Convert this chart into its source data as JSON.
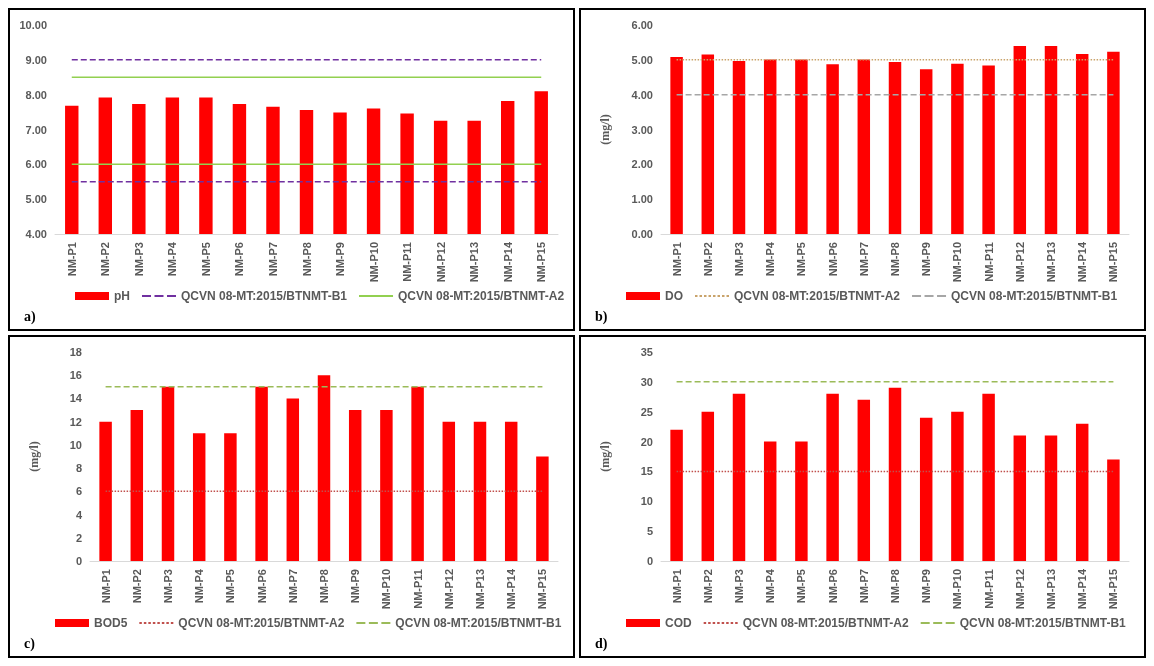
{
  "chart_data": [
    {
      "type": "bar",
      "categories": [
        "NM-P1",
        "NM-P2",
        "NM-P3",
        "NM-P4",
        "NM-P5",
        "NM-P6",
        "NM-P7",
        "NM-P8",
        "NM-P9",
        "NM-P10",
        "NM-P11",
        "NM-P12",
        "NM-P13",
        "NM-P14",
        "NM-P15"
      ],
      "ylim": [
        4,
        10
      ],
      "yticks": [
        {
          "value": 4,
          "label": "4.00"
        },
        {
          "value": 5,
          "label": "5.00"
        },
        {
          "value": 6,
          "label": "6.00"
        },
        {
          "value": 7,
          "label": "7.00"
        },
        {
          "value": 8,
          "label": "8.00"
        },
        {
          "value": 9,
          "label": "9.00"
        },
        {
          "value": 10,
          "label": "10.00"
        }
      ],
      "grid": false,
      "legend": "bottom",
      "annotations": [
        "a)"
      ],
      "series": [
        {
          "name": "pH",
          "color": "#ff0000",
          "values": [
            7.68,
            7.92,
            7.73,
            7.92,
            7.92,
            7.73,
            7.65,
            7.56,
            7.49,
            7.6,
            7.46,
            7.25,
            7.25,
            7.82,
            8.1
          ]
        },
        {
          "type": "line",
          "name": "QCVN 08-MT:2015/BTNMT-B1",
          "color": "#7030a0",
          "line_style": "dashed",
          "values": [
            9,
            9,
            9,
            9,
            9,
            9,
            9,
            9,
            9,
            9,
            9,
            9,
            9,
            9,
            9
          ]
        },
        {
          "type": "line",
          "name": "QCVN 08-MT:2015/BTNMT-A2",
          "color": "#92d050",
          "line_style": "solid",
          "values": [
            8.5,
            8.5,
            8.5,
            8.5,
            8.5,
            8.5,
            8.5,
            8.5,
            8.5,
            8.5,
            8.5,
            8.5,
            8.5,
            8.5,
            8.5
          ]
        },
        {
          "type": "line",
          "color": "#92d050",
          "line_style": "solid",
          "values": [
            6,
            6,
            6,
            6,
            6,
            6,
            6,
            6,
            6,
            6,
            6,
            6,
            6,
            6,
            6
          ]
        },
        {
          "type": "line",
          "color": "#7030a0",
          "line_style": "dashed",
          "values": [
            5.5,
            5.5,
            5.5,
            5.5,
            5.5,
            5.5,
            5.5,
            5.5,
            5.5,
            5.5,
            5.5,
            5.5,
            5.5,
            5.5,
            5.5
          ]
        }
      ]
    },
    {
      "type": "bar",
      "categories": [
        "NM-P1",
        "NM-P2",
        "NM-P3",
        "NM-P4",
        "NM-P5",
        "NM-P6",
        "NM-P7",
        "NM-P8",
        "NM-P9",
        "NM-P10",
        "NM-P11",
        "NM-P12",
        "NM-P13",
        "NM-P14",
        "NM-P15"
      ],
      "ylabel": "(mg/l)",
      "ylim": [
        0,
        6
      ],
      "yticks": [
        {
          "value": 0,
          "label": "0.00"
        },
        {
          "value": 1,
          "label": "1.00"
        },
        {
          "value": 2,
          "label": "2.00"
        },
        {
          "value": 3,
          "label": "3.00"
        },
        {
          "value": 4,
          "label": "4.00"
        },
        {
          "value": 5,
          "label": "5.00"
        },
        {
          "value": 6,
          "label": "6.00"
        }
      ],
      "grid": false,
      "legend": "bottom",
      "annotations": [
        "b)"
      ],
      "series": [
        {
          "name": "DO",
          "color": "#ff0000",
          "values": [
            5.08,
            5.15,
            4.97,
            5.01,
            5.01,
            4.87,
            5.01,
            4.94,
            4.73,
            4.89,
            4.84,
            5.4,
            5.4,
            5.17,
            5.23
          ]
        },
        {
          "type": "line",
          "name": "QCVN 08-MT:2015/BTNMT-A2",
          "color": "#c9a36b",
          "line_style": "dotted",
          "values": [
            5,
            5,
            5,
            5,
            5,
            5,
            5,
            5,
            5,
            5,
            5,
            5,
            5,
            5,
            5
          ]
        },
        {
          "type": "line",
          "name": "QCVN 08-MT:2015/BTNMT-B1",
          "color": "#a6a6a6",
          "line_style": "dashed",
          "values": [
            4,
            4,
            4,
            4,
            4,
            4,
            4,
            4,
            4,
            4,
            4,
            4,
            4,
            4,
            4
          ]
        }
      ]
    },
    {
      "type": "bar",
      "categories": [
        "NM-P1",
        "NM-P2",
        "NM-P3",
        "NM-P4",
        "NM-P5",
        "NM-P6",
        "NM-P7",
        "NM-P8",
        "NM-P9",
        "NM-P10",
        "NM-P11",
        "NM-P12",
        "NM-P13",
        "NM-P14",
        "NM-P15"
      ],
      "ylabel": "(mg/l)",
      "ylim": [
        0,
        18
      ],
      "yticks": [
        0,
        2,
        4,
        6,
        8,
        10,
        12,
        14,
        16,
        18
      ],
      "grid": false,
      "legend": "bottom",
      "annotations": [
        "c)"
      ],
      "series": [
        {
          "name": "BOD5",
          "color": "#ff0000",
          "values": [
            12,
            13,
            15,
            11,
            11,
            15,
            14,
            16,
            13,
            13,
            15,
            12,
            12,
            12,
            9
          ]
        },
        {
          "type": "line",
          "name": "QCVN 08-MT:2015/BTNMT-A2",
          "color": "#c0504d",
          "line_style": "dotted",
          "values": [
            6,
            6,
            6,
            6,
            6,
            6,
            6,
            6,
            6,
            6,
            6,
            6,
            6,
            6,
            6
          ]
        },
        {
          "type": "line",
          "name": "QCVN 08-MT:2015/BTNMT-B1",
          "color": "#9bbb59",
          "line_style": "dashed",
          "values": [
            15,
            15,
            15,
            15,
            15,
            15,
            15,
            15,
            15,
            15,
            15,
            15,
            15,
            15,
            15
          ]
        }
      ]
    },
    {
      "type": "bar",
      "categories": [
        "NM-P1",
        "NM-P2",
        "NM-P3",
        "NM-P4",
        "NM-P5",
        "NM-P6",
        "NM-P7",
        "NM-P8",
        "NM-P9",
        "NM-P10",
        "NM-P11",
        "NM-P12",
        "NM-P13",
        "NM-P14",
        "NM-P15"
      ],
      "ylabel": "(mg/l)",
      "ylim": [
        0,
        35
      ],
      "yticks": [
        0,
        5,
        10,
        15,
        20,
        25,
        30,
        35
      ],
      "grid": false,
      "legend": "bottom",
      "annotations": [
        "d)"
      ],
      "series": [
        {
          "name": "COD",
          "color": "#ff0000",
          "values": [
            22,
            25,
            28,
            20,
            20,
            28,
            27,
            29,
            24,
            25,
            28,
            21,
            21,
            23,
            17
          ]
        },
        {
          "type": "line",
          "name": "QCVN 08-MT:2015/BTNMT-A2",
          "color": "#c0504d",
          "line_style": "dotted",
          "values": [
            15,
            15,
            15,
            15,
            15,
            15,
            15,
            15,
            15,
            15,
            15,
            15,
            15,
            15,
            15
          ]
        },
        {
          "type": "line",
          "name": "QCVN 08-MT:2015/BTNMT-B1",
          "color": "#9bbb59",
          "line_style": "dashed",
          "values": [
            30,
            30,
            30,
            30,
            30,
            30,
            30,
            30,
            30,
            30,
            30,
            30,
            30,
            30,
            30
          ]
        }
      ]
    }
  ]
}
